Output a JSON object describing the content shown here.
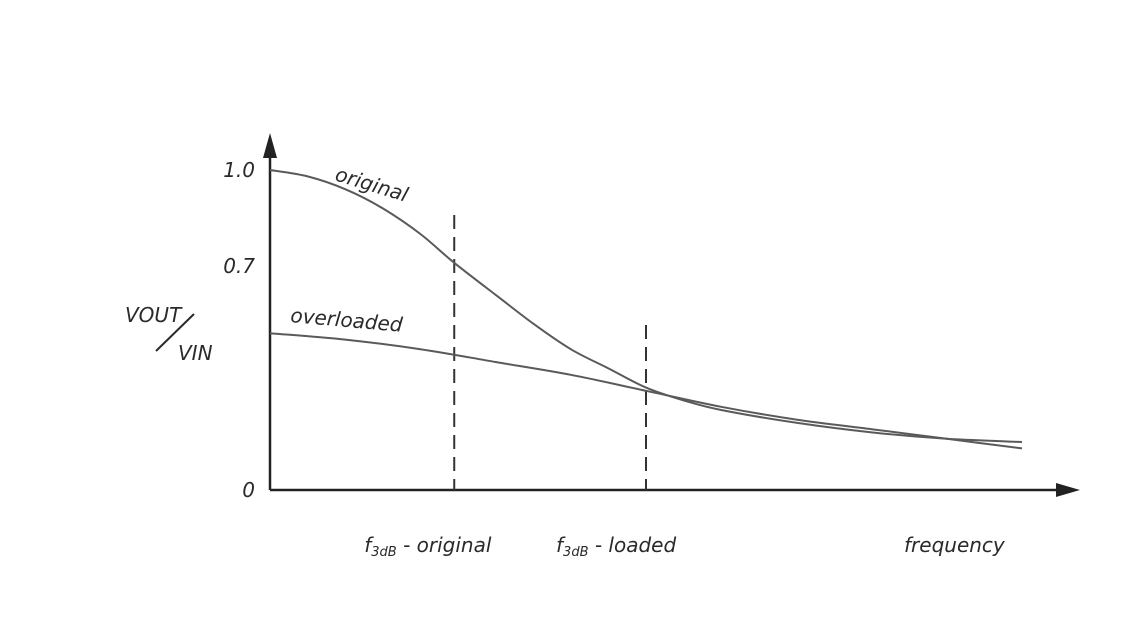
{
  "chart_data": {
    "type": "line",
    "xlabel": "frequency",
    "ylabel": {
      "numerator": "VOUT",
      "denominator": "VIN"
    },
    "y_ticks": [
      {
        "value": 0,
        "label": "0"
      },
      {
        "value": 0.7,
        "label": "0.7"
      },
      {
        "value": 1.0,
        "label": "1.0"
      }
    ],
    "ylim": [
      0,
      1.0
    ],
    "xlim": [
      0,
      1.0
    ],
    "series": [
      {
        "name": "original",
        "color": "#5a5a5a",
        "points": [
          [
            0.0,
            1.0
          ],
          [
            0.05,
            0.98
          ],
          [
            0.1,
            0.94
          ],
          [
            0.15,
            0.88
          ],
          [
            0.2,
            0.8
          ],
          [
            0.245,
            0.71
          ],
          [
            0.3,
            0.61
          ],
          [
            0.35,
            0.52
          ],
          [
            0.4,
            0.44
          ],
          [
            0.45,
            0.38
          ],
          [
            0.5,
            0.32
          ],
          [
            0.55,
            0.28
          ],
          [
            0.6,
            0.25
          ],
          [
            0.7,
            0.21
          ],
          [
            0.8,
            0.18
          ],
          [
            0.9,
            0.16
          ],
          [
            1.0,
            0.15
          ]
        ]
      },
      {
        "name": "overloaded",
        "color": "#5a5a5a",
        "points": [
          [
            0.0,
            0.49
          ],
          [
            0.1,
            0.47
          ],
          [
            0.2,
            0.44
          ],
          [
            0.3,
            0.4
          ],
          [
            0.4,
            0.36
          ],
          [
            0.5,
            0.31
          ],
          [
            0.6,
            0.26
          ],
          [
            0.7,
            0.22
          ],
          [
            0.8,
            0.19
          ],
          [
            0.9,
            0.16
          ],
          [
            1.0,
            0.13
          ]
        ]
      }
    ],
    "markers": [
      {
        "name": "f3dB-original",
        "x": 0.245,
        "main": "f",
        "subscript": "3dB",
        "suffix": " - original"
      },
      {
        "name": "f3dB-loaded",
        "x": 0.5,
        "main": "f",
        "subscript": "3dB",
        "suffix": " - loaded"
      }
    ],
    "grid": false,
    "legend": "none"
  }
}
